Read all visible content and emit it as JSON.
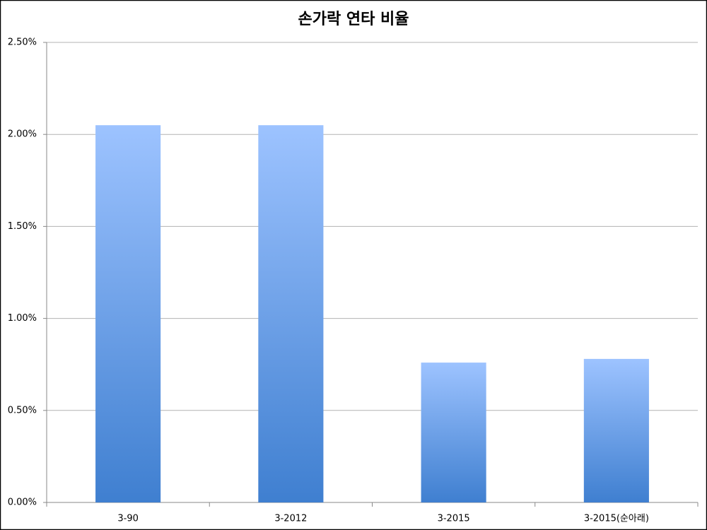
{
  "chart_data": {
    "type": "bar",
    "title": "손가락 연타 비율",
    "categories": [
      "3-90",
      "3-2012",
      "3-2015",
      "3-2015(순아래)"
    ],
    "values": [
      2.05,
      2.05,
      0.76,
      0.78
    ],
    "gradient": [
      "#9dc3ff",
      "#3f7fd0"
    ],
    "ylim": [
      0,
      2.5
    ],
    "yticks": [
      {
        "value": 0,
        "label": "0.00%"
      },
      {
        "value": 0.5,
        "label": "0.50%"
      },
      {
        "value": 1,
        "label": "1.00%"
      },
      {
        "value": 1.5,
        "label": "1.50%"
      },
      {
        "value": 2,
        "label": "2.00%"
      },
      {
        "value": 2.5,
        "label": "2.50%"
      }
    ],
    "grid": true
  }
}
